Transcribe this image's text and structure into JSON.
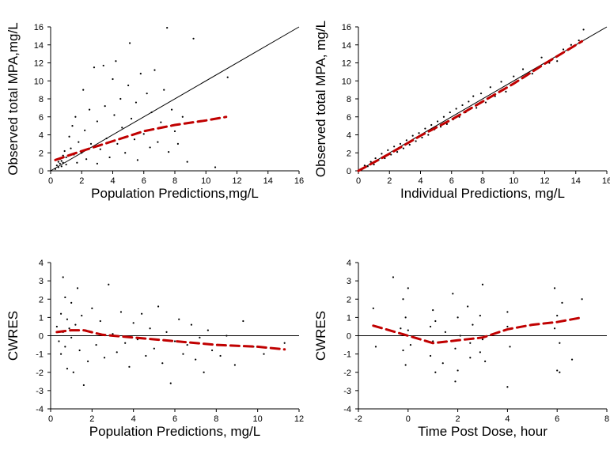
{
  "colors": {
    "points": "#000000",
    "trend": "#c00000",
    "axis": "#000000"
  },
  "chart_data": [
    {
      "type": "scatter",
      "xlabel": "Population Predictions,mg/L",
      "ylabel": "Observed total MPA,mg/L",
      "xlim": [
        0,
        16
      ],
      "ylim": [
        0,
        16
      ],
      "xticks": [
        "0",
        "2",
        "4",
        "6",
        "8",
        "10",
        "12",
        "14",
        "16"
      ],
      "yticks": [
        "0",
        "2",
        "4",
        "6",
        "8",
        "10",
        "12",
        "14",
        "16"
      ],
      "reference_line": "identity",
      "points": [
        [
          0.3,
          0.2
        ],
        [
          0.4,
          0.6
        ],
        [
          0.5,
          0.4
        ],
        [
          0.5,
          1.0
        ],
        [
          0.6,
          0.8
        ],
        [
          0.6,
          1.3
        ],
        [
          0.7,
          0.5
        ],
        [
          0.7,
          1.1
        ],
        [
          0.8,
          1.7
        ],
        [
          0.8,
          0.9
        ],
        [
          0.9,
          2.2
        ],
        [
          1.0,
          0.7
        ],
        [
          1.0,
          1.5
        ],
        [
          1.2,
          3.8
        ],
        [
          1.3,
          2.5
        ],
        [
          1.4,
          5.0
        ],
        [
          1.5,
          1.8
        ],
        [
          1.6,
          6.0
        ],
        [
          1.7,
          0.9
        ],
        [
          1.8,
          3.2
        ],
        [
          2.0,
          2.0
        ],
        [
          2.1,
          9.0
        ],
        [
          2.2,
          4.5
        ],
        [
          2.3,
          1.3
        ],
        [
          2.5,
          6.8
        ],
        [
          2.6,
          3.0
        ],
        [
          2.8,
          11.5
        ],
        [
          3.0,
          0.8
        ],
        [
          3.0,
          5.5
        ],
        [
          3.2,
          2.4
        ],
        [
          3.4,
          11.7
        ],
        [
          3.5,
          7.2
        ],
        [
          3.6,
          3.6
        ],
        [
          3.8,
          1.5
        ],
        [
          4.0,
          10.2
        ],
        [
          4.1,
          6.2
        ],
        [
          4.2,
          12.2
        ],
        [
          4.3,
          3.0
        ],
        [
          4.5,
          8.0
        ],
        [
          4.6,
          4.8
        ],
        [
          4.8,
          2.0
        ],
        [
          5.0,
          9.5
        ],
        [
          5.1,
          14.2
        ],
        [
          5.2,
          5.8
        ],
        [
          5.4,
          3.5
        ],
        [
          5.5,
          7.6
        ],
        [
          5.6,
          1.2
        ],
        [
          5.8,
          10.8
        ],
        [
          6.0,
          4.1
        ],
        [
          6.2,
          8.6
        ],
        [
          6.4,
          2.6
        ],
        [
          6.5,
          6.5
        ],
        [
          6.7,
          11.2
        ],
        [
          6.9,
          3.2
        ],
        [
          7.1,
          5.4
        ],
        [
          7.3,
          9.0
        ],
        [
          7.5,
          15.9
        ],
        [
          7.6,
          2.1
        ],
        [
          7.8,
          6.8
        ],
        [
          8.0,
          4.4
        ],
        [
          8.2,
          3.0
        ],
        [
          8.5,
          6.0
        ],
        [
          8.8,
          1.0
        ],
        [
          9.2,
          14.7
        ],
        [
          10.6,
          0.4
        ],
        [
          11.4,
          10.4
        ]
      ],
      "trend": [
        [
          0.3,
          1.2
        ],
        [
          2,
          2.2
        ],
        [
          4,
          3.3
        ],
        [
          6,
          4.4
        ],
        [
          8,
          5.1
        ],
        [
          10,
          5.6
        ],
        [
          11.3,
          6.0
        ]
      ]
    },
    {
      "type": "scatter",
      "xlabel": "Individual Predictions, mg/L",
      "ylabel": "Observed total MPA, mg/L",
      "xlim": [
        0,
        16
      ],
      "ylim": [
        0,
        16
      ],
      "xticks": [
        "0",
        "2",
        "4",
        "6",
        "8",
        "10",
        "12",
        "14",
        "16"
      ],
      "yticks": [
        "0",
        "2",
        "4",
        "6",
        "8",
        "10",
        "12",
        "14",
        "16"
      ],
      "reference_line": "identity",
      "points": [
        [
          0.2,
          0.1
        ],
        [
          0.4,
          0.6
        ],
        [
          0.6,
          0.5
        ],
        [
          0.8,
          1.0
        ],
        [
          1.0,
          0.7
        ],
        [
          1.1,
          1.4
        ],
        [
          1.3,
          1.2
        ],
        [
          1.5,
          1.9
        ],
        [
          1.7,
          1.4
        ],
        [
          1.9,
          2.3
        ],
        [
          2.1,
          1.8
        ],
        [
          2.3,
          2.7
        ],
        [
          2.5,
          2.1
        ],
        [
          2.7,
          3.0
        ],
        [
          2.9,
          2.5
        ],
        [
          3.1,
          3.4
        ],
        [
          3.3,
          2.9
        ],
        [
          3.5,
          3.9
        ],
        [
          3.7,
          3.3
        ],
        [
          3.9,
          4.2
        ],
        [
          4.1,
          3.7
        ],
        [
          4.3,
          4.7
        ],
        [
          4.5,
          4.0
        ],
        [
          4.7,
          5.1
        ],
        [
          4.9,
          4.6
        ],
        [
          5.1,
          5.5
        ],
        [
          5.3,
          4.9
        ],
        [
          5.5,
          6.0
        ],
        [
          5.7,
          5.2
        ],
        [
          5.9,
          6.5
        ],
        [
          6.1,
          5.7
        ],
        [
          6.3,
          6.9
        ],
        [
          6.5,
          6.0
        ],
        [
          6.7,
          7.3
        ],
        [
          6.9,
          6.5
        ],
        [
          7.1,
          7.7
        ],
        [
          7.4,
          8.3
        ],
        [
          7.6,
          7.0
        ],
        [
          7.9,
          8.6
        ],
        [
          8.2,
          7.6
        ],
        [
          8.5,
          9.3
        ],
        [
          8.8,
          8.3
        ],
        [
          9.2,
          9.9
        ],
        [
          9.5,
          8.8
        ],
        [
          10.0,
          10.5
        ],
        [
          10.3,
          10.0
        ],
        [
          10.6,
          11.3
        ],
        [
          11.2,
          10.8
        ],
        [
          11.8,
          12.6
        ],
        [
          12.3,
          12.0
        ],
        [
          12.8,
          12.2
        ],
        [
          13.2,
          13.5
        ],
        [
          13.7,
          14.0
        ],
        [
          14.2,
          14.5
        ],
        [
          14.5,
          15.7
        ]
      ],
      "trend": [
        [
          0,
          0.0
        ],
        [
          2,
          1.9
        ],
        [
          4,
          3.9
        ],
        [
          6,
          5.7
        ],
        [
          8,
          7.7
        ],
        [
          10,
          9.7
        ],
        [
          12,
          11.9
        ],
        [
          14.4,
          14.4
        ]
      ]
    },
    {
      "type": "scatter",
      "xlabel": "Population Predictions, mg/L",
      "ylabel": "CWRES",
      "xlim": [
        0,
        12
      ],
      "ylim": [
        -4,
        4
      ],
      "xticks": [
        "0",
        "2",
        "4",
        "6",
        "8",
        "10",
        "12"
      ],
      "yticks": [
        "-4",
        "-3",
        "-2",
        "-1",
        "0",
        "1",
        "2",
        "3",
        "4"
      ],
      "reference_line": "zero",
      "points": [
        [
          0.3,
          0.5
        ],
        [
          0.4,
          -0.3
        ],
        [
          0.5,
          1.2
        ],
        [
          0.5,
          -1.0
        ],
        [
          0.6,
          3.2
        ],
        [
          0.6,
          0.2
        ],
        [
          0.7,
          -0.6
        ],
        [
          0.7,
          2.1
        ],
        [
          0.8,
          0.9
        ],
        [
          0.8,
          -1.8
        ],
        [
          0.9,
          0.4
        ],
        [
          1.0,
          -0.1
        ],
        [
          1.0,
          1.8
        ],
        [
          1.1,
          -2.0
        ],
        [
          1.2,
          0.6
        ],
        [
          1.3,
          2.6
        ],
        [
          1.4,
          -0.8
        ],
        [
          1.5,
          1.1
        ],
        [
          1.6,
          -2.7
        ],
        [
          1.7,
          0.3
        ],
        [
          1.8,
          -1.4
        ],
        [
          2.0,
          1.5
        ],
        [
          2.2,
          -0.5
        ],
        [
          2.4,
          0.8
        ],
        [
          2.6,
          -1.2
        ],
        [
          2.8,
          2.8
        ],
        [
          3.0,
          0.1
        ],
        [
          3.2,
          -0.9
        ],
        [
          3.4,
          1.3
        ],
        [
          3.6,
          -0.4
        ],
        [
          3.8,
          -1.7
        ],
        [
          4.0,
          0.7
        ],
        [
          4.2,
          -0.2
        ],
        [
          4.4,
          1.2
        ],
        [
          4.6,
          -1.1
        ],
        [
          4.8,
          0.4
        ],
        [
          5.0,
          -0.7
        ],
        [
          5.2,
          1.6
        ],
        [
          5.4,
          -1.5
        ],
        [
          5.6,
          0.2
        ],
        [
          5.8,
          -2.6
        ],
        [
          6.0,
          -0.3
        ],
        [
          6.2,
          0.9
        ],
        [
          6.4,
          -1.0
        ],
        [
          6.6,
          -0.5
        ],
        [
          6.8,
          0.6
        ],
        [
          7.0,
          -1.3
        ],
        [
          7.2,
          -0.1
        ],
        [
          7.4,
          -2.0
        ],
        [
          7.6,
          0.3
        ],
        [
          7.8,
          -0.8
        ],
        [
          8.2,
          -1.1
        ],
        [
          8.5,
          0.0
        ],
        [
          8.9,
          -1.6
        ],
        [
          9.3,
          0.8
        ],
        [
          9.8,
          -0.6
        ],
        [
          10.3,
          -1.0
        ],
        [
          11.3,
          -0.4
        ]
      ],
      "trend": [
        [
          0.3,
          0.2
        ],
        [
          1,
          0.3
        ],
        [
          1.6,
          0.3
        ],
        [
          2.5,
          0.05
        ],
        [
          4,
          -0.1
        ],
        [
          6,
          -0.3
        ],
        [
          8,
          -0.5
        ],
        [
          10,
          -0.6
        ],
        [
          11.3,
          -0.75
        ]
      ]
    },
    {
      "type": "scatter",
      "xlabel": "Time Post Dose, hour",
      "ylabel": "CWRES",
      "xlim": [
        -2,
        8
      ],
      "ylim": [
        -4,
        4
      ],
      "xticks": [
        "-2",
        "0",
        "2",
        "4",
        "6",
        "8"
      ],
      "yticks": [
        "-4",
        "-3",
        "-2",
        "-1",
        "0",
        "1",
        "2",
        "3",
        "4"
      ],
      "reference_line": "zero",
      "points": [
        [
          -1.4,
          1.5
        ],
        [
          -1.3,
          -0.6
        ],
        [
          -0.6,
          3.2
        ],
        [
          -0.3,
          0.4
        ],
        [
          -0.2,
          -0.8
        ],
        [
          -0.2,
          2.0
        ],
        [
          -0.1,
          1.0
        ],
        [
          -0.1,
          -1.6
        ],
        [
          0.0,
          0.3
        ],
        [
          0.0,
          2.6
        ],
        [
          0.1,
          -0.5
        ],
        [
          0.9,
          -1.1
        ],
        [
          0.9,
          0.5
        ],
        [
          1.0,
          1.4
        ],
        [
          1.0,
          -0.3
        ],
        [
          1.1,
          -2.0
        ],
        [
          1.1,
          0.8
        ],
        [
          1.4,
          -1.5
        ],
        [
          1.5,
          0.2
        ],
        [
          1.8,
          2.3
        ],
        [
          1.9,
          -0.7
        ],
        [
          1.9,
          -2.5
        ],
        [
          2.0,
          1.0
        ],
        [
          2.0,
          -1.9
        ],
        [
          2.1,
          0.0
        ],
        [
          2.4,
          1.6
        ],
        [
          2.5,
          -0.4
        ],
        [
          2.5,
          -1.2
        ],
        [
          2.6,
          0.6
        ],
        [
          2.9,
          -0.9
        ],
        [
          2.9,
          1.1
        ],
        [
          3.0,
          2.8
        ],
        [
          3.0,
          -0.2
        ],
        [
          3.1,
          -1.4
        ],
        [
          4.0,
          -2.8
        ],
        [
          4.0,
          0.5
        ],
        [
          4.0,
          1.3
        ],
        [
          4.1,
          -0.6
        ],
        [
          5.9,
          0.4
        ],
        [
          5.9,
          2.6
        ],
        [
          6.0,
          -1.9
        ],
        [
          6.0,
          1.1
        ],
        [
          6.1,
          -0.4
        ],
        [
          6.2,
          1.8
        ],
        [
          6.1,
          -2.0
        ],
        [
          6.6,
          -1.3
        ],
        [
          7.0,
          2.0
        ]
      ],
      "trend": [
        [
          -1.4,
          0.55
        ],
        [
          -0.5,
          0.2
        ],
        [
          0,
          0.0
        ],
        [
          1,
          -0.4
        ],
        [
          2,
          -0.25
        ],
        [
          3,
          -0.1
        ],
        [
          4,
          0.35
        ],
        [
          5,
          0.6
        ],
        [
          6,
          0.75
        ],
        [
          7,
          1.0
        ]
      ]
    }
  ]
}
